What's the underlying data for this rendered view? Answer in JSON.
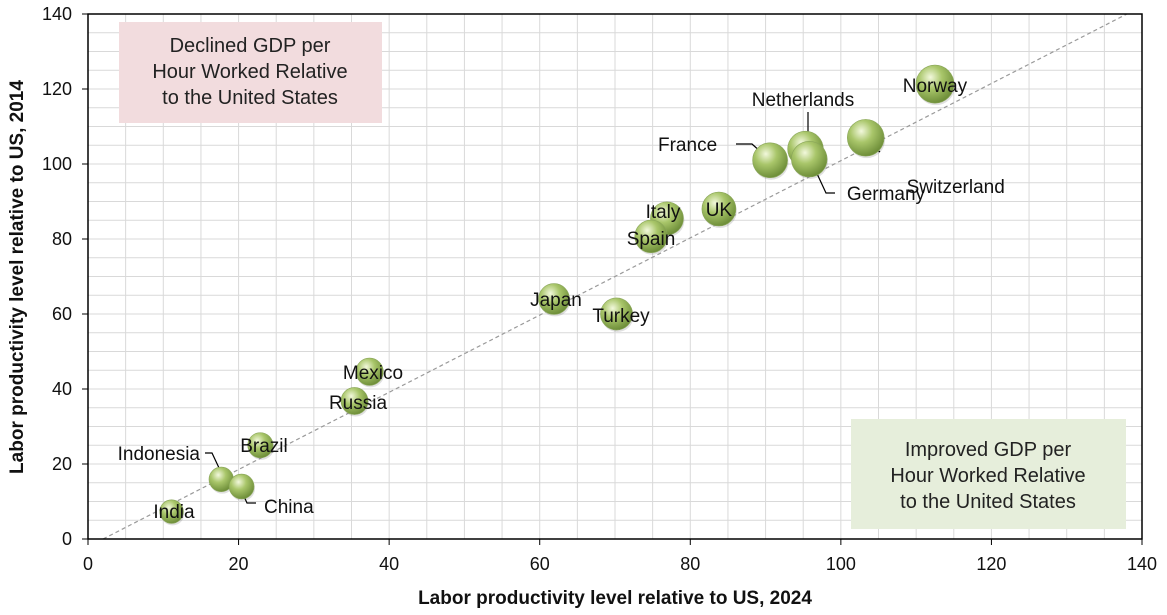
{
  "chart_data": {
    "type": "scatter",
    "xlabel": "Labor productivity level relative to US, 2024",
    "ylabel": "Labor productivity level relative to US, 2014",
    "xlim": [
      0,
      140
    ],
    "ylim": [
      0,
      140
    ],
    "xticks": [
      "0",
      "20",
      "40",
      "60",
      "80",
      "100",
      "120",
      "140"
    ],
    "yticks": [
      "0",
      "20",
      "40",
      "60",
      "80",
      "100",
      "120",
      "140"
    ],
    "grid": true,
    "reference_line": {
      "from": [
        2,
        0
      ],
      "to": [
        138,
        140
      ],
      "style": "dashed"
    },
    "points": [
      {
        "label": "Norway",
        "x": 112.5,
        "y": 121.3
      },
      {
        "label": "Switzerland",
        "x": 103.3,
        "y": 107.0
      },
      {
        "label": "Netherlands",
        "x": 95.3,
        "y": 104.0
      },
      {
        "label": "Germany",
        "x": 95.8,
        "y": 101.3
      },
      {
        "label": "France",
        "x": 90.6,
        "y": 101.0
      },
      {
        "label": "UK",
        "x": 83.8,
        "y": 88.0
      },
      {
        "label": "Italy",
        "x": 76.9,
        "y": 85.5
      },
      {
        "label": "Spain",
        "x": 74.8,
        "y": 80.7
      },
      {
        "label": "Japan",
        "x": 61.9,
        "y": 64.0
      },
      {
        "label": "Turkey",
        "x": 70.2,
        "y": 60.0
      },
      {
        "label": "Mexico",
        "x": 37.4,
        "y": 44.6
      },
      {
        "label": "Russia",
        "x": 35.4,
        "y": 36.8
      },
      {
        "label": "Brazil",
        "x": 22.9,
        "y": 25.0
      },
      {
        "label": "Indonesia",
        "x": 17.7,
        "y": 15.9
      },
      {
        "label": "China",
        "x": 20.4,
        "y": 14.0
      },
      {
        "label": "India",
        "x": 11.1,
        "y": 7.3
      }
    ],
    "annotations": {
      "top_left": [
        "Declined GDP per",
        "Hour Worked Relative",
        "to the United States"
      ],
      "bottom_right": [
        "Improved GDP per",
        "Hour Worked Relative",
        "to the United States"
      ]
    },
    "colors": {
      "bubble_light": "#f2f8dc",
      "bubble_mid": "#a9c66a",
      "bubble_dark": "#6f8f3a",
      "box_top_left": "#f2dcde",
      "box_bottom_right": "#e6eedb",
      "grid": "#d9d9d9",
      "reference_line": "#9a9a9a"
    }
  }
}
